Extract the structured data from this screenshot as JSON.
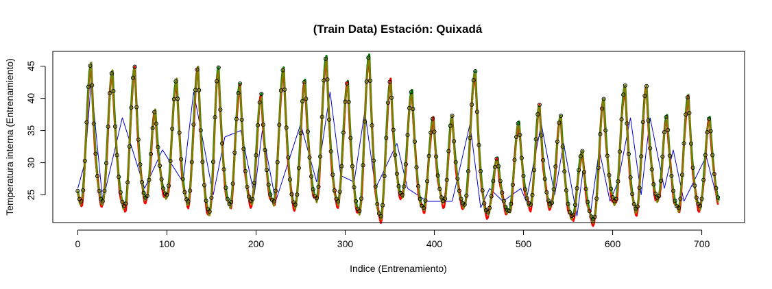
{
  "chart_data": {
    "type": "line",
    "title": "(Train Data) Estación: Quixadá",
    "xlabel": "Indice (Entrenamiento)",
    "ylabel": "Temperatura interna (Entrenamiento)",
    "xlim": [
      -28,
      748
    ],
    "ylim": [
      20.7,
      47.3
    ],
    "x_ticks": [
      0,
      100,
      200,
      300,
      400,
      500,
      600,
      700
    ],
    "y_ticks": [
      25,
      30,
      35,
      40,
      45
    ],
    "grid": false,
    "legend": "none",
    "n_points": 720,
    "observed_peaks_x": [
      15,
      39,
      64,
      87,
      111,
      135,
      158,
      182,
      206,
      231,
      255,
      279,
      303,
      327,
      351,
      375,
      399,
      420,
      446,
      471,
      495,
      518,
      542,
      566,
      590,
      614,
      638,
      661,
      685,
      709
    ],
    "observed_peaks_y": [
      45.5,
      44.3,
      44.9,
      38.2,
      43.0,
      44.9,
      44.8,
      42.3,
      40.7,
      44.8,
      42.9,
      46.6,
      42.7,
      46.8,
      43.0,
      41.3,
      37.1,
      37.3,
      44.2,
      30.8,
      36.4,
      39.0,
      37.3,
      31.8,
      39.9,
      42.0,
      41.9,
      37.4,
      40.5,
      37.1
    ],
    "trough_y": [
      24.0,
      23.2,
      24.5,
      25.0,
      24.0,
      22.4,
      23.5,
      24.0,
      24.0,
      23.5,
      24.5,
      24.0,
      22.5,
      21.7,
      25.0,
      23.0,
      24.0,
      23.5,
      22.3,
      22.5,
      23.5,
      23.5,
      21.7,
      21.2,
      24.0,
      22.8,
      24.5,
      23.0,
      23.3,
      23.6
    ],
    "trend_points": [
      {
        "x": 0,
        "y": 26
      },
      {
        "x": 8,
        "y": 30
      },
      {
        "x": 15,
        "y": 42.5
      },
      {
        "x": 28,
        "y": 24
      },
      {
        "x": 50,
        "y": 37
      },
      {
        "x": 75,
        "y": 26
      },
      {
        "x": 95,
        "y": 32
      },
      {
        "x": 118,
        "y": 27
      },
      {
        "x": 130,
        "y": 41
      },
      {
        "x": 152,
        "y": 25
      },
      {
        "x": 165,
        "y": 34
      },
      {
        "x": 183,
        "y": 35
      },
      {
        "x": 198,
        "y": 25
      },
      {
        "x": 207,
        "y": 35
      },
      {
        "x": 222,
        "y": 24
      },
      {
        "x": 250,
        "y": 36
      },
      {
        "x": 268,
        "y": 27
      },
      {
        "x": 283,
        "y": 41
      },
      {
        "x": 295,
        "y": 28
      },
      {
        "x": 310,
        "y": 27
      },
      {
        "x": 322,
        "y": 38
      },
      {
        "x": 334,
        "y": 26
      },
      {
        "x": 358,
        "y": 33
      },
      {
        "x": 370,
        "y": 26
      },
      {
        "x": 392,
        "y": 24
      },
      {
        "x": 410,
        "y": 24
      },
      {
        "x": 420,
        "y": 24
      },
      {
        "x": 440,
        "y": 36
      },
      {
        "x": 452,
        "y": 23
      },
      {
        "x": 462,
        "y": 26
      },
      {
        "x": 477,
        "y": 24
      },
      {
        "x": 497,
        "y": 26
      },
      {
        "x": 503,
        "y": 24
      },
      {
        "x": 520,
        "y": 36
      },
      {
        "x": 535,
        "y": 25
      },
      {
        "x": 545,
        "y": 33
      },
      {
        "x": 560,
        "y": 21.7
      },
      {
        "x": 567,
        "y": 29
      },
      {
        "x": 575,
        "y": 22
      },
      {
        "x": 585,
        "y": 32
      },
      {
        "x": 597,
        "y": 24
      },
      {
        "x": 606,
        "y": 27
      },
      {
        "x": 620,
        "y": 37
      },
      {
        "x": 632,
        "y": 25
      },
      {
        "x": 642,
        "y": 37
      },
      {
        "x": 658,
        "y": 26
      },
      {
        "x": 668,
        "y": 32
      },
      {
        "x": 680,
        "y": 24
      },
      {
        "x": 705,
        "y": 31
      },
      {
        "x": 718,
        "y": 24
      }
    ],
    "colors": {
      "observed": "#008000",
      "prediction_a": "#ff0000",
      "prediction_b": "#808000",
      "trend": "#0000cd",
      "points": "#000000"
    }
  }
}
